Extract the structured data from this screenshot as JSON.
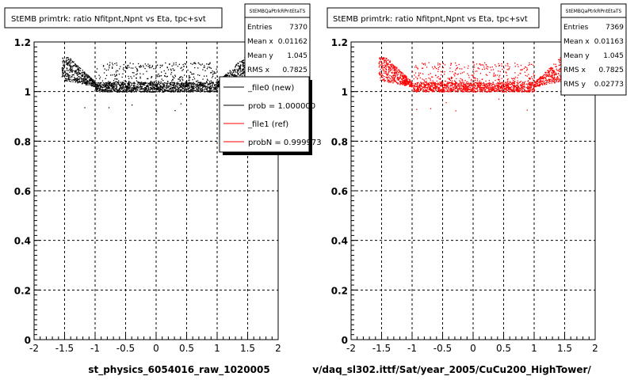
{
  "footer": {
    "left_title": "st_physics_6054016_raw_1020005",
    "right_title": "v/daq_sl302.ittf/Sat/year_2005/CuCu200_HighTower/"
  },
  "chart_data": [
    {
      "type": "scatter",
      "title": "StEMB primtrk: ratio Nfitpnt,Npnt vs Eta, tpc+svt",
      "xlim": [
        -2,
        2
      ],
      "ylim": [
        0,
        1.2
      ],
      "x_ticks": [
        "-2",
        "-1.5",
        "-1",
        "-0.5",
        "0",
        "0.5",
        "1",
        "1.5",
        "2"
      ],
      "y_ticks": [
        "0",
        "0.2",
        "0.4",
        "0.6",
        "0.8",
        "1",
        "1.2"
      ],
      "grid": true,
      "marker_color": "#000000",
      "stats": {
        "name": "StEMBQaPtrkRPntEtaTS",
        "rows": [
          {
            "label": "Entries",
            "value": "7370"
          },
          {
            "label": "Mean x",
            "value": "0.01162"
          },
          {
            "label": "Mean y",
            "value": "1.045"
          },
          {
            "label": "RMS x",
            "value": "0.7825"
          }
        ]
      },
      "legend": {
        "placement": "right",
        "entries": [
          {
            "label": "_file0 (new)",
            "color": "#000000"
          },
          {
            "label": "prob = 1.000000",
            "color": "#000000"
          },
          {
            "label": "_file1 (ref)",
            "color": "#ff0000"
          },
          {
            "label": "probN = 0.999973",
            "color": "#ff0000"
          }
        ]
      },
      "distribution": {
        "x_range": [
          -1.55,
          1.55
        ],
        "y_band": [
          1.0,
          1.14
        ],
        "y_core": [
          1.0,
          1.04
        ]
      }
    },
    {
      "type": "scatter",
      "title": "StEMB primtrk: ratio Nfitpnt,Npnt vs Eta, tpc+svt",
      "xlim": [
        -2,
        2
      ],
      "ylim": [
        0,
        1.2
      ],
      "x_ticks": [
        "-2",
        "-1.5",
        "-1",
        "-0.5",
        "0",
        "0.5",
        "1",
        "1.5",
        "2"
      ],
      "y_ticks": [
        "0",
        "0.2",
        "0.4",
        "0.6",
        "0.8",
        "1",
        "1.2"
      ],
      "grid": true,
      "marker_color": "#ff0000",
      "stats": {
        "name": "StEMBQaPtrkRPntEtaTS",
        "rows": [
          {
            "label": "Entries",
            "value": "7369"
          },
          {
            "label": "Mean x",
            "value": "0.01163"
          },
          {
            "label": "Mean y",
            "value": "1.045"
          },
          {
            "label": "RMS x",
            "value": "0.7825"
          },
          {
            "label": "RMS y",
            "value": "0.02773"
          }
        ]
      },
      "distribution": {
        "x_range": [
          -1.55,
          1.55
        ],
        "y_band": [
          1.0,
          1.14
        ],
        "y_core": [
          1.0,
          1.04
        ]
      }
    }
  ]
}
